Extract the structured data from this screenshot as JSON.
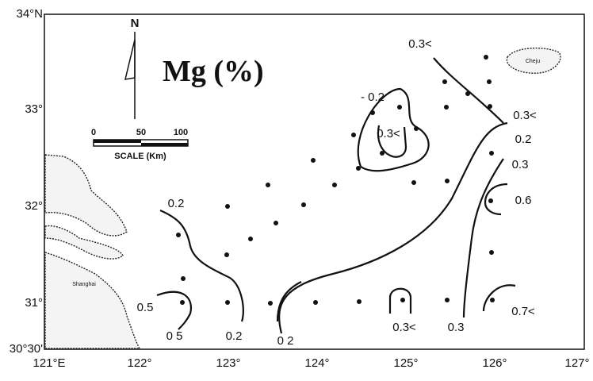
{
  "map": {
    "title": "Mg (%)",
    "north": "N",
    "scale": {
      "ticks": [
        "0",
        "50",
        "100"
      ],
      "label": "SCALE (Km)"
    },
    "longitude_labels": [
      "121°E",
      "122°",
      "123°",
      "124°",
      "125°",
      "126°",
      "127°"
    ],
    "latitude_labels": [
      "34°N",
      "33°",
      "32°",
      "31°",
      "30°30'"
    ],
    "places": [
      "Cheju",
      "Shanghai"
    ],
    "contour_labels": [
      "0.3<",
      "- 0.2",
      "0.3<",
      "0.3<",
      "0.2",
      "0.3",
      "0.6",
      "0.2",
      "0.5",
      "0 5",
      "0.2",
      "0 2",
      "0.3<",
      "0.3",
      "0.7<"
    ]
  }
}
